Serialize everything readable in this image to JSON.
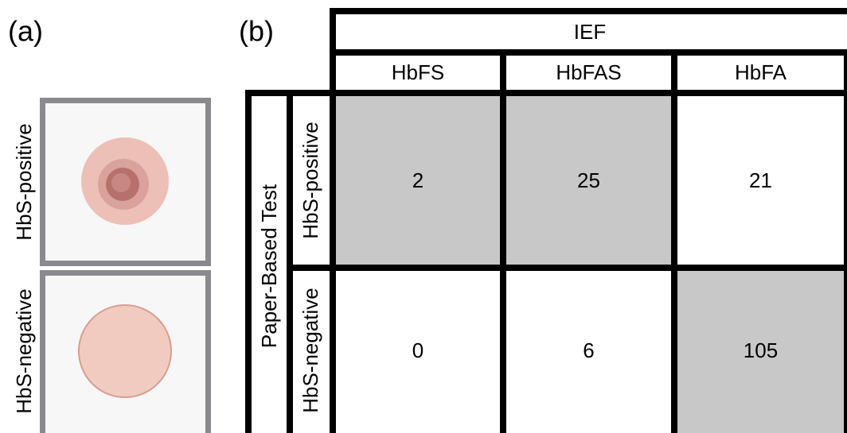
{
  "panel_a": {
    "label": "(a)",
    "rows": [
      "HbS-positive",
      "HbS-negative"
    ]
  },
  "panel_b": {
    "label": "(b)",
    "table": {
      "column_group": "IEF",
      "columns": [
        "HbFS",
        "HbFAS",
        "HbFA"
      ],
      "row_group": "Paper-Based Test",
      "rows": [
        {
          "label": "HbS-positive",
          "cells": [
            2,
            25,
            21
          ]
        },
        {
          "label": "HbS-negative",
          "cells": [
            0,
            6,
            105
          ]
        }
      ]
    }
  }
}
